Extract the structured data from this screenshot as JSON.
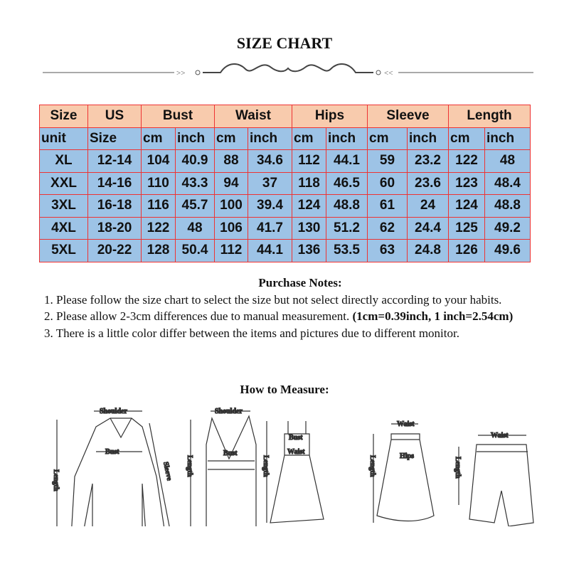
{
  "title": "SIZE CHART",
  "table": {
    "header": [
      "Size",
      "US",
      "Bust",
      "Waist",
      "Hips",
      "Sleeve",
      "Length"
    ],
    "units": [
      "unit",
      "Size",
      "cm",
      "inch",
      "cm",
      "inch",
      "cm",
      "inch",
      "cm",
      "inch",
      "cm",
      "inch"
    ],
    "rows": [
      [
        "XL",
        "12-14",
        "104",
        "40.9",
        "88",
        "34.6",
        "112",
        "44.1",
        "59",
        "23.2",
        "122",
        "48"
      ],
      [
        "XXL",
        "14-16",
        "110",
        "43.3",
        "94",
        "37",
        "118",
        "46.5",
        "60",
        "23.6",
        "123",
        "48.4"
      ],
      [
        "3XL",
        "16-18",
        "116",
        "45.7",
        "100",
        "39.4",
        "124",
        "48.8",
        "61",
        "24",
        "124",
        "48.8"
      ],
      [
        "4XL",
        "18-20",
        "122",
        "48",
        "106",
        "41.7",
        "130",
        "51.2",
        "62",
        "24.4",
        "125",
        "49.2"
      ],
      [
        "5XL",
        "20-22",
        "128",
        "50.4",
        "112",
        "44.1",
        "136",
        "53.5",
        "63",
        "24.8",
        "126",
        "49.6"
      ]
    ],
    "colors": {
      "header_bg": "#f8cbad",
      "body_bg": "#9dc3e6",
      "border": "#ee3333"
    }
  },
  "notes": {
    "title": "Purchase Notes:",
    "items": [
      "1. Please follow the size chart to select the size but not select directly according to your habits.",
      "2. Please allow 2-3cm differences due to manual measurement. ",
      "3. There is a little color differ between the items and pictures due to different monitor."
    ],
    "conversion": "(1cm=0.39inch, 1 inch=2.54cm)"
  },
  "how_to_measure": {
    "title": "How to Measure:",
    "labels": {
      "shoulder": "Shoulder",
      "bust": "Bust",
      "sleeve": "Sleeve",
      "length": "Length",
      "waist": "Waist",
      "hips": "Hips"
    }
  }
}
